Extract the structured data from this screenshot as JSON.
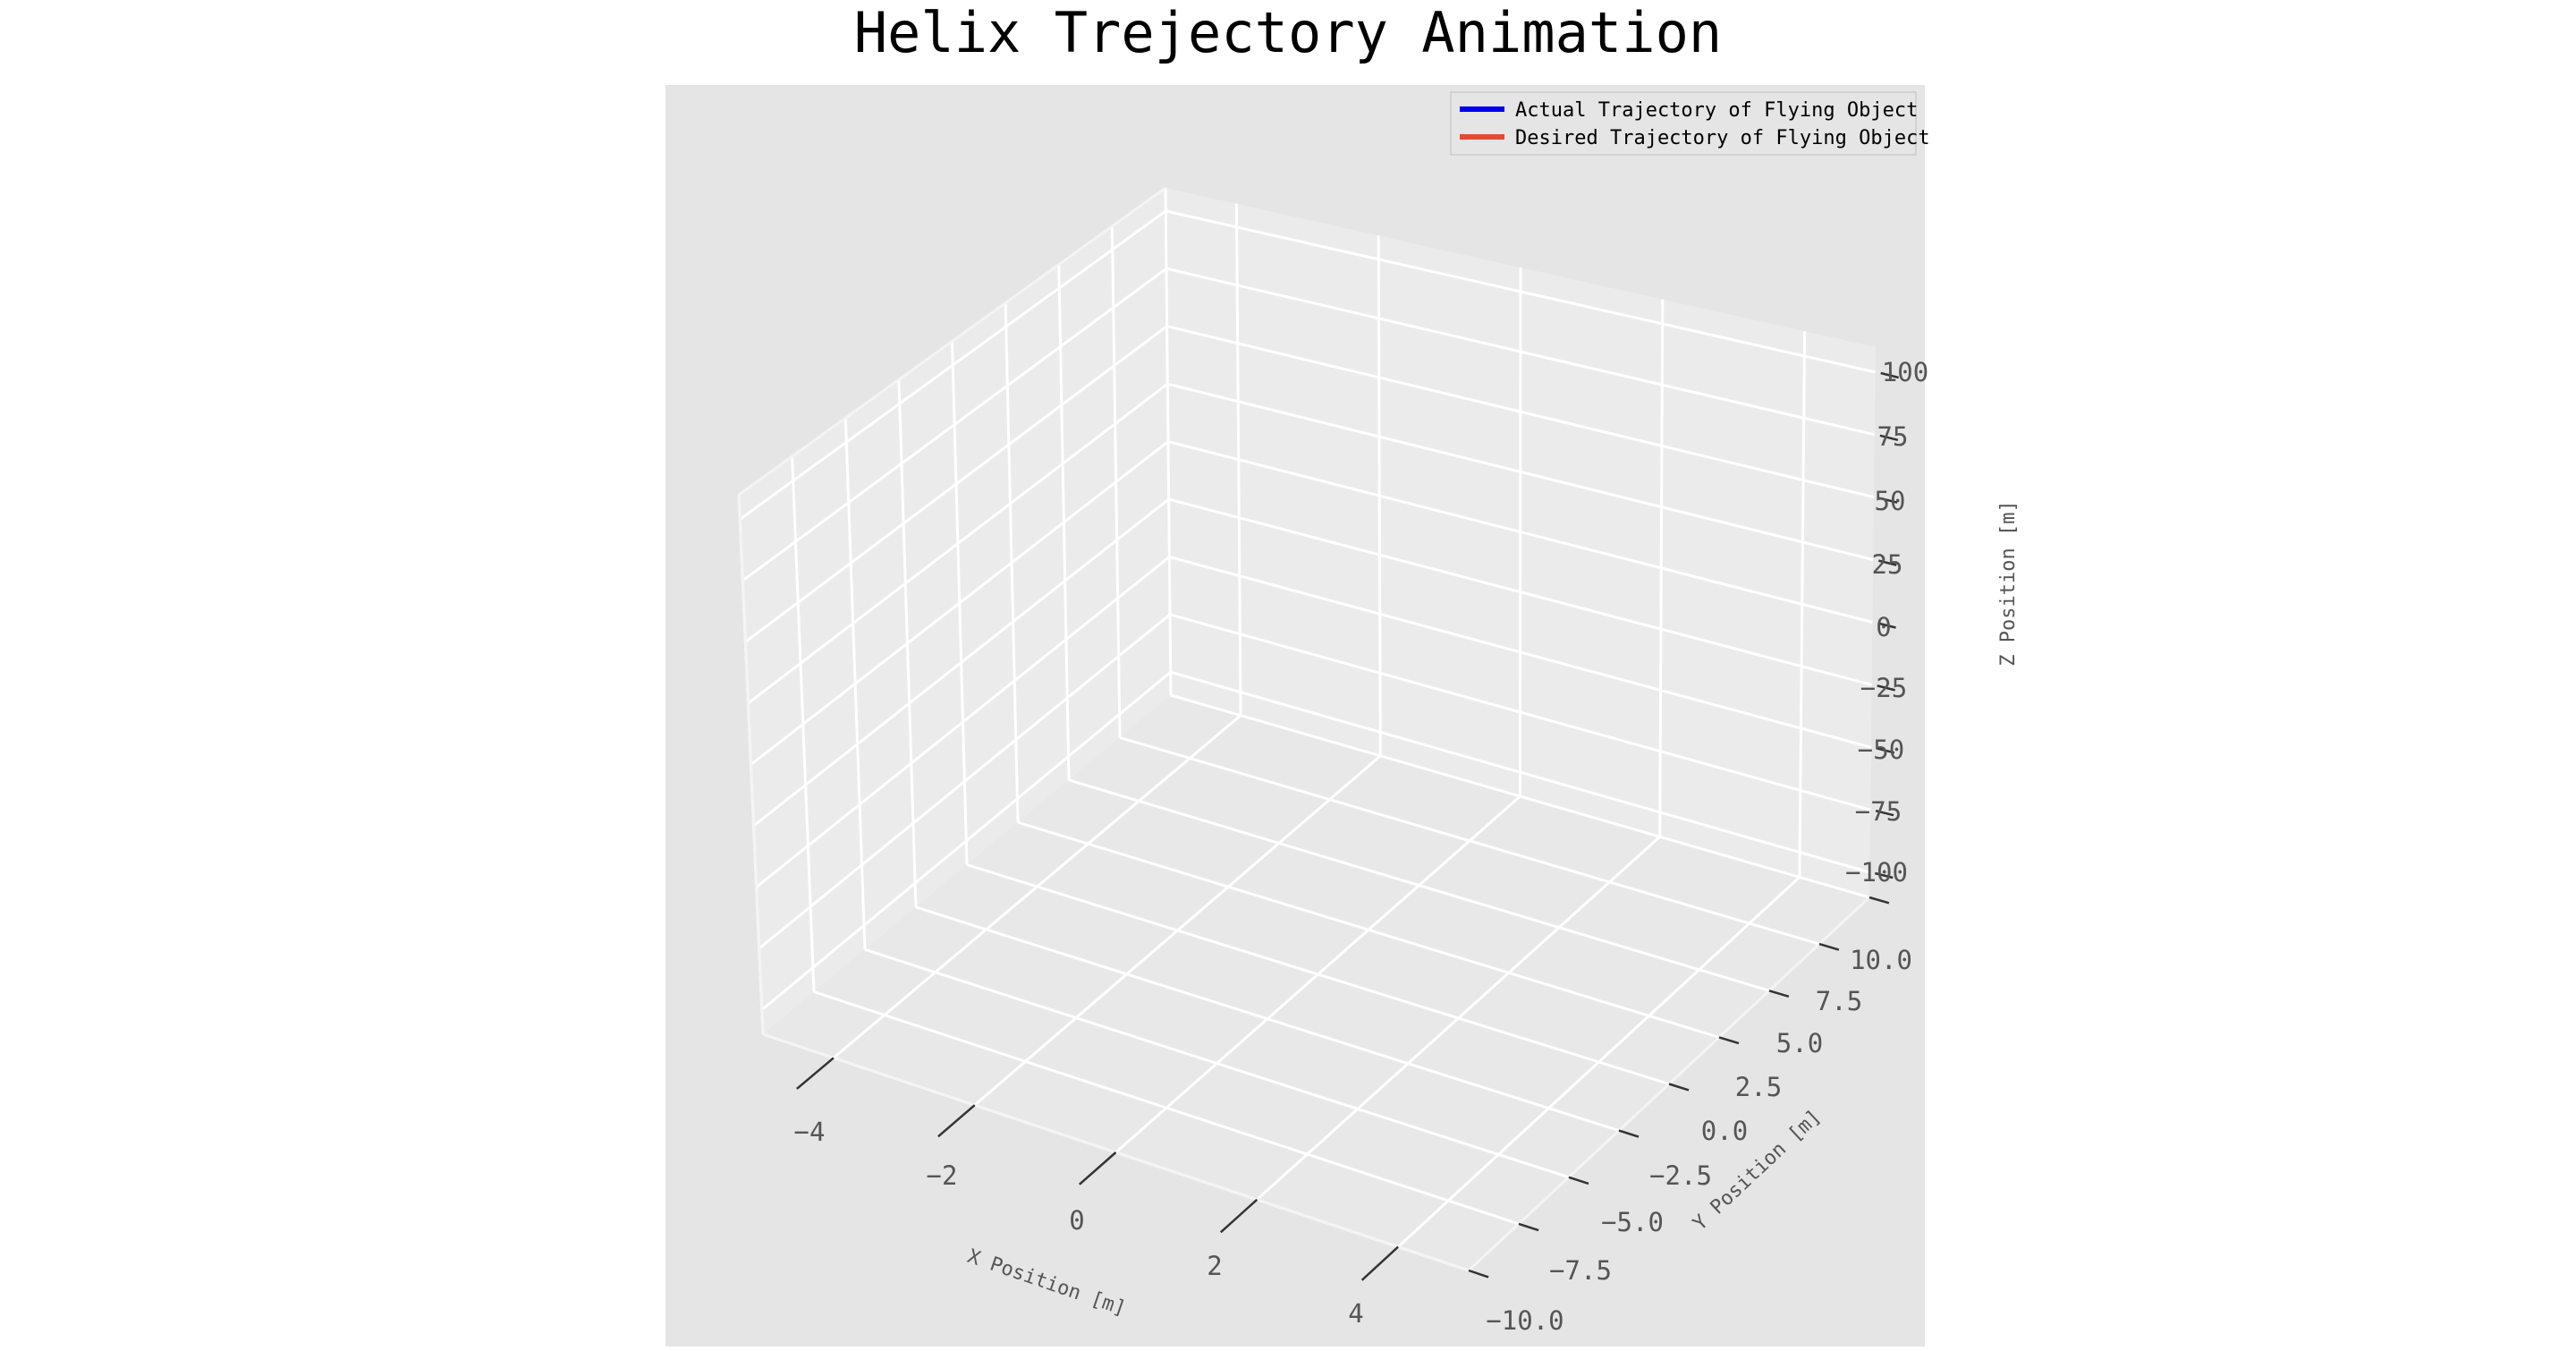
{
  "chart_data": {
    "type": "line",
    "title": "Helix Trejectory Animation",
    "xlabel": "X Position [m]",
    "ylabel": "Y Position [m]",
    "zlabel": "Z Position [m]",
    "x_ticks": [
      "−4",
      "−2",
      "0",
      "2",
      "4"
    ],
    "y_ticks": [
      "−10.0",
      "−7.5",
      "−5.0",
      "−2.5",
      "0.0",
      "2.5",
      "5.0",
      "7.5",
      "10.0"
    ],
    "z_ticks": [
      "−100",
      "−75",
      "−50",
      "−25",
      "0",
      "25",
      "50",
      "75",
      "100"
    ],
    "xlim": [
      -5,
      5
    ],
    "ylim": [
      -10,
      10
    ],
    "zlim": [
      -110,
      110
    ],
    "grid": true,
    "legend_position": "top-right",
    "series": [
      {
        "name": "Actual Trajectory of Flying Object",
        "color": "#0000ee",
        "points": []
      },
      {
        "name": "Desired Trajectory of Flying Object",
        "color": "#e24a33",
        "points": []
      }
    ]
  }
}
